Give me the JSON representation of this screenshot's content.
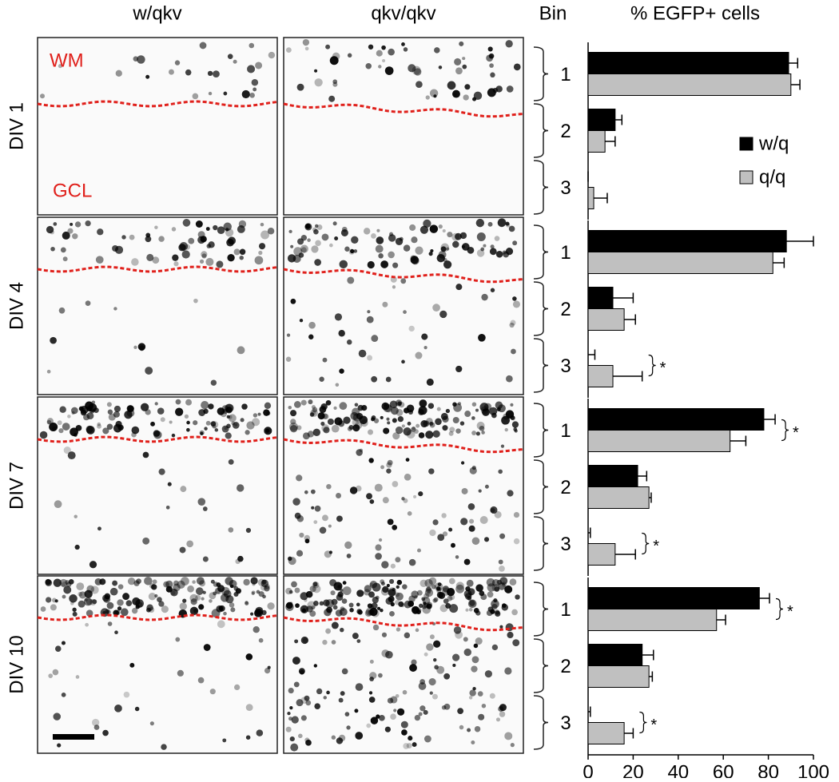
{
  "column_labels": [
    "w/qkv",
    "qkv/qkv"
  ],
  "bin_header": "Bin",
  "image_labels": {
    "top": "WM",
    "bottom": "GCL"
  },
  "chart_data": [
    {
      "type": "bar",
      "orientation": "horizontal",
      "title": "% EGFP+ cells",
      "row_label": "DIV 1",
      "categories": [
        "1",
        "2",
        "3"
      ],
      "series": [
        {
          "name": "w/q",
          "color": "#000000",
          "values": [
            89,
            12,
            0
          ],
          "errors": [
            4,
            3,
            0
          ]
        },
        {
          "name": "q/q",
          "color": "#c0c0c0",
          "values": [
            90,
            7.5,
            2.5
          ],
          "errors": [
            4,
            4.5,
            6
          ]
        }
      ],
      "significance_marks": [
        null,
        null,
        null
      ],
      "xlim": [
        0,
        100
      ],
      "legend": "right"
    },
    {
      "type": "bar",
      "orientation": "horizontal",
      "row_label": "DIV 4",
      "categories": [
        "1",
        "2",
        "3"
      ],
      "series": [
        {
          "color": "#000000",
          "values": [
            88,
            11,
            0
          ],
          "errors": [
            12,
            9,
            3
          ]
        },
        {
          "color": "#c0c0c0",
          "values": [
            82,
            16,
            11
          ],
          "errors": [
            5,
            5,
            13
          ]
        }
      ],
      "significance_marks": [
        null,
        null,
        "*"
      ],
      "xlim": [
        0,
        100
      ]
    },
    {
      "type": "bar",
      "orientation": "horizontal",
      "row_label": "DIV 7",
      "categories": [
        "1",
        "2",
        "3"
      ],
      "series": [
        {
          "color": "#000000",
          "values": [
            78,
            22,
            0
          ],
          "errors": [
            5,
            4,
            1
          ]
        },
        {
          "color": "#c0c0c0",
          "values": [
            63,
            27,
            12
          ],
          "errors": [
            7,
            1,
            9
          ]
        }
      ],
      "significance_marks": [
        "*",
        null,
        "*"
      ],
      "xlim": [
        0,
        100
      ]
    },
    {
      "type": "bar",
      "orientation": "horizontal",
      "row_label": "DIV 10",
      "categories": [
        "1",
        "2",
        "3"
      ],
      "series": [
        {
          "color": "#000000",
          "values": [
            76,
            24,
            0
          ],
          "errors": [
            4.5,
            5,
            1
          ]
        },
        {
          "color": "#c0c0c0",
          "values": [
            57,
            27,
            16
          ],
          "errors": [
            4,
            1.5,
            4
          ]
        }
      ],
      "significance_marks": [
        "*",
        null,
        "*"
      ],
      "xlim": [
        0,
        100
      ],
      "xticks": [
        0,
        20,
        40,
        60,
        80,
        100
      ]
    }
  ]
}
